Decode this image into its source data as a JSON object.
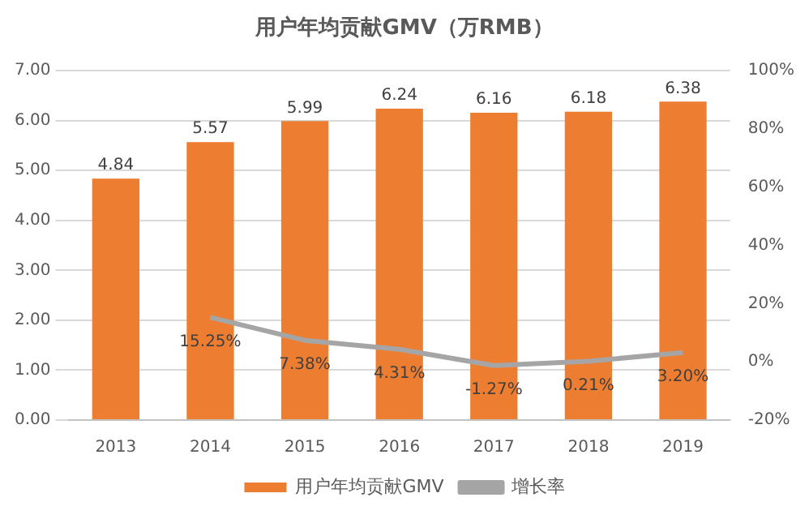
{
  "chart_data": {
    "type": "bar",
    "title": "用户年均贡献GMV（万RMB）",
    "categories": [
      "2013",
      "2014",
      "2015",
      "2016",
      "2017",
      "2018",
      "2019"
    ],
    "series": [
      {
        "name": "用户年均贡献GMV",
        "color": "#ed7d31",
        "values": [
          4.84,
          5.57,
          5.99,
          6.24,
          6.16,
          6.18,
          6.38
        ],
        "value_labels": [
          "4.84",
          "5.57",
          "5.99",
          "6.24",
          "6.16",
          "6.18",
          "6.38"
        ]
      },
      {
        "name": "增长率",
        "type": "line",
        "axis": "y2",
        "color": "#a5a5a5",
        "values": [
          null,
          15.25,
          7.38,
          4.31,
          -1.27,
          0.21,
          3.2
        ],
        "value_labels": [
          null,
          "15.25%",
          "7.38%",
          "4.31%",
          "-1.27%",
          "0.21%",
          "3.20%"
        ]
      }
    ],
    "ylim": [
      0,
      7
    ],
    "yticks": [
      {
        "value": 0,
        "label": "0.00"
      },
      {
        "value": 1,
        "label": "1.00"
      },
      {
        "value": 2,
        "label": "2.00"
      },
      {
        "value": 3,
        "label": "3.00"
      },
      {
        "value": 4,
        "label": "4.00"
      },
      {
        "value": 5,
        "label": "5.00"
      },
      {
        "value": 6,
        "label": "6.00"
      },
      {
        "value": 7,
        "label": "7.00"
      }
    ],
    "y2lim": [
      -20,
      100
    ],
    "y2ticks": [
      {
        "value": -20,
        "label": "-20%"
      },
      {
        "value": 0,
        "label": "0%"
      },
      {
        "value": 20,
        "label": "20%"
      },
      {
        "value": 40,
        "label": "40%"
      },
      {
        "value": 60,
        "label": "60%"
      },
      {
        "value": 80,
        "label": "80%"
      },
      {
        "value": 100,
        "label": "100%"
      }
    ],
    "grid": "y",
    "legend": "bottom",
    "marker": "none"
  }
}
